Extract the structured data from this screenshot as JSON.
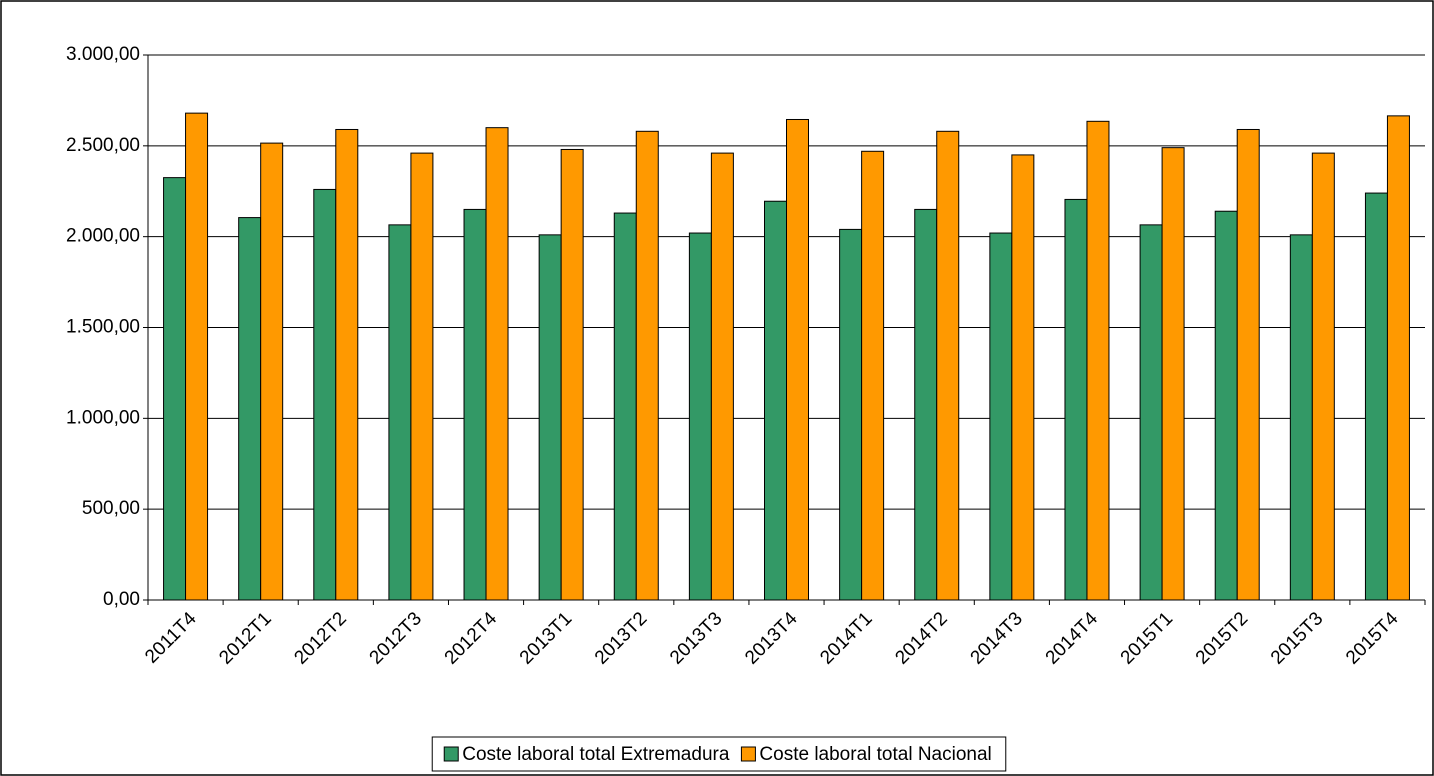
{
  "chart_data": {
    "type": "bar",
    "categories": [
      "2011T4",
      "2012T1",
      "2012T2",
      "2012T3",
      "2012T4",
      "2013T1",
      "2013T2",
      "2013T3",
      "2013T4",
      "2014T1",
      "2014T2",
      "2014T3",
      "2014T4",
      "2015T1",
      "2015T2",
      "2015T3",
      "2015T4"
    ],
    "series": [
      {
        "name": "Coste laboral total Extremadura",
        "color": "#339966",
        "values": [
          2325,
          2105,
          2260,
          2065,
          2150,
          2010,
          2130,
          2020,
          2195,
          2040,
          2150,
          2020,
          2205,
          2065,
          2140,
          2010,
          2240
        ]
      },
      {
        "name": "Coste laboral total Nacional",
        "color": "#ff9900",
        "values": [
          2680,
          2515,
          2590,
          2460,
          2600,
          2480,
          2580,
          2460,
          2645,
          2470,
          2580,
          2450,
          2635,
          2490,
          2590,
          2460,
          2665
        ]
      }
    ],
    "ylim": [
      0,
      3000
    ],
    "yticks": [
      {
        "value": 0,
        "label": "0,00"
      },
      {
        "value": 500,
        "label": "500,00"
      },
      {
        "value": 1000,
        "label": "1.000,00"
      },
      {
        "value": 1500,
        "label": "1.500,00"
      },
      {
        "value": 2000,
        "label": "2.000,00"
      },
      {
        "value": 2500,
        "label": "2.500,00"
      },
      {
        "value": 3000,
        "label": "3.000,00"
      }
    ],
    "grid": true,
    "legend": "bottom"
  }
}
